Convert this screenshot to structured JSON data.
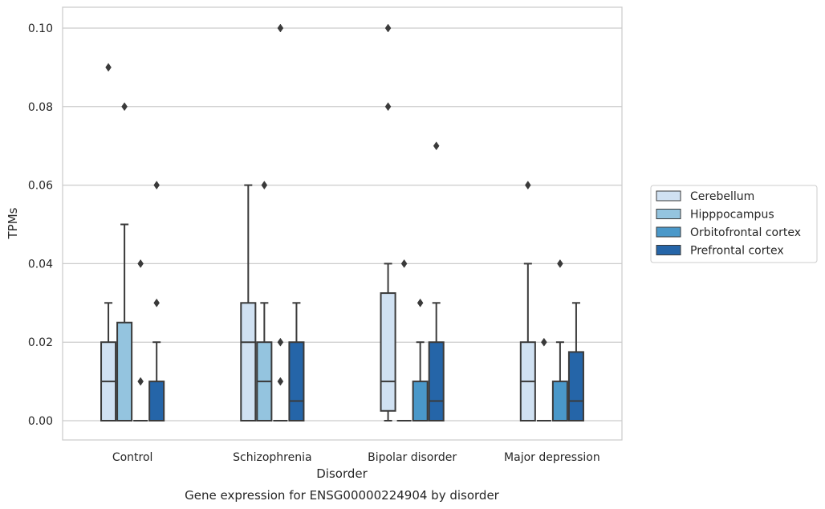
{
  "chart_data": {
    "type": "box",
    "title": "",
    "caption": "Gene expression for ENSG00000224904 by disorder",
    "xlabel": "Disorder",
    "ylabel": "TPMs",
    "ylim": [
      -0.005,
      0.105
    ],
    "yticks": [
      "0.00",
      "0.02",
      "0.04",
      "0.06",
      "0.08",
      "0.10"
    ],
    "categories": [
      "Control",
      "Schizophrenia",
      "Bipolar disorder",
      "Major depression"
    ],
    "grid": "horizontal",
    "legend_position": "right",
    "series": [
      {
        "name": "Cerebellum",
        "color": "#d0e1f2",
        "boxes": [
          {
            "q1": 0.0,
            "median": 0.01,
            "q3": 0.02,
            "whisker_low": 0.0,
            "whisker_high": 0.03,
            "outliers": [
              0.09
            ]
          },
          {
            "q1": 0.0,
            "median": 0.02,
            "q3": 0.03,
            "whisker_low": 0.0,
            "whisker_high": 0.06,
            "outliers": []
          },
          {
            "q1": 0.0025,
            "median": 0.01,
            "q3": 0.0325,
            "whisker_low": 0.0,
            "whisker_high": 0.04,
            "outliers": [
              0.08,
              0.1
            ]
          },
          {
            "q1": 0.0,
            "median": 0.01,
            "q3": 0.02,
            "whisker_low": 0.0,
            "whisker_high": 0.04,
            "outliers": [
              0.06
            ]
          }
        ]
      },
      {
        "name": "Hipppocampus",
        "color": "#94c4df",
        "boxes": [
          {
            "q1": 0.0,
            "median": 0.0,
            "q3": 0.025,
            "whisker_low": 0.0,
            "whisker_high": 0.05,
            "outliers": [
              0.08
            ]
          },
          {
            "q1": 0.0,
            "median": 0.01,
            "q3": 0.02,
            "whisker_low": 0.0,
            "whisker_high": 0.03,
            "outliers": [
              0.06
            ]
          },
          {
            "q1": 0.0,
            "median": 0.0,
            "q3": 0.0,
            "whisker_low": 0.0,
            "whisker_high": 0.0,
            "outliers": [
              0.04
            ]
          },
          {
            "q1": 0.0,
            "median": 0.0,
            "q3": 0.0,
            "whisker_low": 0.0,
            "whisker_high": 0.0,
            "outliers": [
              0.02
            ]
          }
        ]
      },
      {
        "name": "Orbitofrontal cortex",
        "color": "#4a98c9",
        "boxes": [
          {
            "q1": 0.0,
            "median": 0.0,
            "q3": 0.0,
            "whisker_low": 0.0,
            "whisker_high": 0.0,
            "outliers": [
              0.01,
              0.04
            ]
          },
          {
            "q1": 0.0,
            "median": 0.0,
            "q3": 0.0,
            "whisker_low": 0.0,
            "whisker_high": 0.0,
            "outliers": [
              0.01,
              0.02,
              0.1
            ]
          },
          {
            "q1": 0.0,
            "median": 0.0,
            "q3": 0.01,
            "whisker_low": 0.0,
            "whisker_high": 0.02,
            "outliers": [
              0.03
            ]
          },
          {
            "q1": 0.0,
            "median": 0.0,
            "q3": 0.01,
            "whisker_low": 0.0,
            "whisker_high": 0.02,
            "outliers": [
              0.04
            ]
          }
        ]
      },
      {
        "name": "Prefrontal cortex",
        "color": "#2565a8",
        "boxes": [
          {
            "q1": 0.0,
            "median": 0.0,
            "q3": 0.01,
            "whisker_low": 0.0,
            "whisker_high": 0.02,
            "outliers": [
              0.03,
              0.06
            ]
          },
          {
            "q1": 0.0,
            "median": 0.005,
            "q3": 0.02,
            "whisker_low": 0.0,
            "whisker_high": 0.03,
            "outliers": []
          },
          {
            "q1": 0.0,
            "median": 0.005,
            "q3": 0.02,
            "whisker_low": 0.0,
            "whisker_high": 0.03,
            "outliers": [
              0.07
            ]
          },
          {
            "q1": 0.0,
            "median": 0.005,
            "q3": 0.0175,
            "whisker_low": 0.0,
            "whisker_high": 0.03,
            "outliers": []
          }
        ]
      }
    ]
  }
}
